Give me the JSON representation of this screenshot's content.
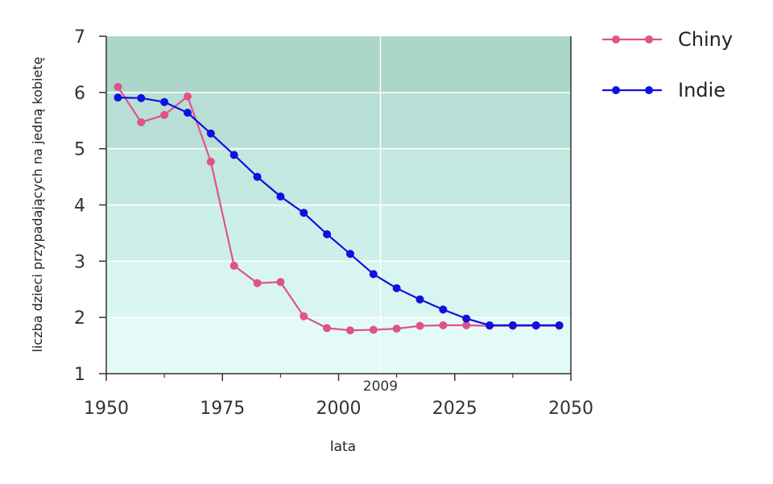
{
  "chart_data": {
    "type": "line",
    "xlabel": "lata",
    "ylabel": "liczba dzieci przypadających na jedną kobietę",
    "xlim": [
      1950,
      2050
    ],
    "ylim": [
      1,
      7
    ],
    "xticks": [
      1950,
      1975,
      2000,
      2025,
      2050
    ],
    "yticks": [
      1,
      2,
      3,
      4,
      5,
      6,
      7
    ],
    "grid": true,
    "legend": "right",
    "annotation": {
      "label": "2009",
      "x": 2009
    },
    "bands": {
      "colors": [
        "#e3faf7",
        "#d8f5f1",
        "#cdefea",
        "#c2e8e0",
        "#b7dfd5",
        "#acd6c9"
      ]
    },
    "series": [
      {
        "name": "Chiny",
        "color": "#e0528b",
        "x": [
          1952.5,
          1957.5,
          1962.5,
          1967.5,
          1972.5,
          1977.5,
          1982.5,
          1987.5,
          1992.5,
          1997.5,
          2002.5,
          2007.5,
          2012.5,
          2017.5,
          2022.5,
          2027.5,
          2032.5,
          2037.5,
          2042.5,
          2047.5
        ],
        "y": [
          6.1,
          5.47,
          5.6,
          5.93,
          4.77,
          2.92,
          2.61,
          2.63,
          2.02,
          1.81,
          1.77,
          1.78,
          1.8,
          1.85,
          1.86,
          1.86,
          1.85,
          1.85,
          1.85,
          1.85
        ]
      },
      {
        "name": "Indie",
        "color": "#1010e0",
        "x": [
          1952.5,
          1957.5,
          1962.5,
          1967.5,
          1972.5,
          1977.5,
          1982.5,
          1987.5,
          1992.5,
          1997.5,
          2002.5,
          2007.5,
          2012.5,
          2017.5,
          2022.5,
          2027.5,
          2032.5,
          2037.5,
          2042.5,
          2047.5
        ],
        "y": [
          5.91,
          5.9,
          5.83,
          5.64,
          5.27,
          4.89,
          4.5,
          4.15,
          3.86,
          3.48,
          3.13,
          2.77,
          2.52,
          2.32,
          2.14,
          1.98,
          1.86,
          1.86,
          1.86,
          1.86
        ]
      }
    ]
  }
}
